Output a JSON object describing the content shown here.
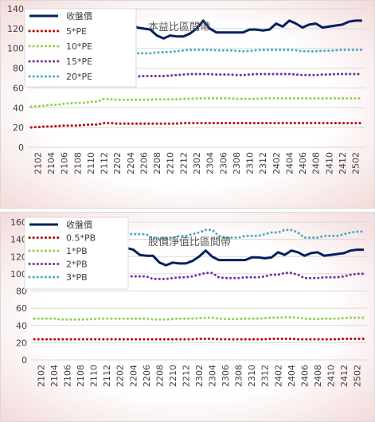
{
  "chart_data": [
    {
      "type": "line",
      "title": "本益比區間帶",
      "x": [
        "2101",
        "2102",
        "2103",
        "2104",
        "2105",
        "2106",
        "2107",
        "2108",
        "2109",
        "2110",
        "2111",
        "2112",
        "2201",
        "2202",
        "2203",
        "2204",
        "2205",
        "2206",
        "2207",
        "2208",
        "2209",
        "2210",
        "2211",
        "2212",
        "2301",
        "2302",
        "2303",
        "2304",
        "2305",
        "2306",
        "2307",
        "2308",
        "2309",
        "2310",
        "2311",
        "2312",
        "2401",
        "2402",
        "2403",
        "2404",
        "2405",
        "2406",
        "2407",
        "2408",
        "2409",
        "2410",
        "2411",
        "2412",
        "2501",
        "2502",
        "2503"
      ],
      "x_tick_labels": [
        "2102",
        "2104",
        "2106",
        "2108",
        "2110",
        "2112",
        "2202",
        "2204",
        "2206",
        "2208",
        "2210",
        "2212",
        "2302",
        "2304",
        "2306",
        "2308",
        "2310",
        "2312",
        "2402",
        "2404",
        "2406",
        "2408",
        "2410",
        "2412",
        "2502"
      ],
      "ylim": [
        0,
        140
      ],
      "y_ticks": [
        0,
        20,
        40,
        60,
        80,
        100,
        120,
        140
      ],
      "grid": true,
      "legend": "top-left",
      "series": [
        {
          "name": "收盤價",
          "color": "#002060",
          "style": "solid",
          "values": [
            125,
            126,
            127,
            128,
            126,
            124,
            125,
            126,
            124,
            122,
            121,
            115,
            122,
            125,
            130,
            126,
            121,
            120,
            119,
            113,
            110,
            113,
            112,
            112,
            115,
            120,
            128,
            120,
            116,
            116,
            116,
            116,
            116,
            119,
            119,
            118,
            119,
            125,
            122,
            128,
            125,
            121,
            124,
            125,
            121,
            122,
            123,
            124,
            127,
            128,
            128
          ]
        },
        {
          "name": "5*PE",
          "color": "#c00000",
          "style": "dotted",
          "values": [
            20,
            20.5,
            21,
            21,
            21.5,
            22,
            22,
            22,
            22.5,
            23,
            23,
            24.5,
            24.5,
            24,
            24,
            24,
            24,
            24,
            24,
            24,
            24,
            24,
            24,
            24.5,
            24.5,
            24.5,
            24.5,
            24.5,
            24.5,
            24.5,
            24.5,
            24.5,
            24.5,
            24.5,
            24.5,
            24.5,
            24.5,
            24.5,
            24.5,
            24.5,
            24.5,
            24.5,
            24.5,
            24.5,
            24.5,
            24.5,
            24.5,
            24.5,
            24.5,
            24.5,
            24.5
          ]
        },
        {
          "name": "10*PE",
          "color": "#92d050",
          "style": "dotted",
          "values": [
            41,
            41.5,
            42,
            43,
            43,
            44,
            44.5,
            45,
            45,
            46,
            46,
            49,
            48.5,
            48,
            48,
            48,
            48,
            48,
            48,
            48.5,
            48.5,
            48.5,
            48.5,
            49,
            49,
            49.5,
            49.5,
            49.5,
            49.5,
            49.5,
            49.5,
            49,
            49,
            49,
            49,
            49.5,
            49.5,
            49.5,
            49.5,
            49.5,
            49.5,
            49.5,
            49.5,
            49.5,
            49.5,
            49.5,
            49.5,
            49.5,
            49.5,
            49.5,
            49.5
          ]
        },
        {
          "name": "15*PE",
          "color": "#7030a0",
          "style": "dotted",
          "values": [
            62,
            63,
            63.5,
            64,
            65,
            66,
            66.5,
            67,
            67.5,
            69,
            69,
            73,
            72,
            72,
            71.5,
            71.5,
            71.5,
            72,
            72,
            72,
            72,
            72.5,
            73,
            73.5,
            74,
            74,
            74,
            74,
            73.5,
            73.5,
            73.5,
            73,
            73,
            73.5,
            74,
            74,
            74,
            74,
            74,
            74,
            73.5,
            73,
            73,
            73,
            73.5,
            73.5,
            74,
            74,
            74,
            74,
            74
          ]
        },
        {
          "name": "20*PE",
          "color": "#4bacc6",
          "style": "dotted",
          "values": [
            82,
            83,
            84,
            85,
            86,
            88,
            89,
            90,
            91,
            92,
            92,
            97,
            96,
            96,
            95,
            95,
            95,
            95,
            95,
            96,
            96,
            96.5,
            97,
            98,
            98.5,
            98.5,
            98.5,
            98.5,
            98,
            98,
            98,
            97.5,
            97,
            97.5,
            98,
            98.5,
            98.5,
            98.5,
            98.5,
            98.5,
            98,
            97,
            97,
            97,
            97.5,
            97.5,
            98,
            98.5,
            98.5,
            98.5,
            98.5
          ]
        }
      ]
    },
    {
      "type": "line",
      "title": "股價淨值比區間帶",
      "x": [
        "2101",
        "2102",
        "2103",
        "2104",
        "2105",
        "2106",
        "2107",
        "2108",
        "2109",
        "2110",
        "2111",
        "2112",
        "2201",
        "2202",
        "2203",
        "2204",
        "2205",
        "2206",
        "2207",
        "2208",
        "2209",
        "2210",
        "2211",
        "2212",
        "2301",
        "2302",
        "2303",
        "2304",
        "2305",
        "2306",
        "2307",
        "2308",
        "2309",
        "2310",
        "2311",
        "2312",
        "2401",
        "2402",
        "2403",
        "2404",
        "2405",
        "2406",
        "2407",
        "2408",
        "2409",
        "2410",
        "2411",
        "2412",
        "2501",
        "2502",
        "2503"
      ],
      "x_tick_labels": [
        "2102",
        "2104",
        "2106",
        "2108",
        "2110",
        "2112",
        "2202",
        "2204",
        "2206",
        "2208",
        "2210",
        "2212",
        "2302",
        "2304",
        "2306",
        "2308",
        "2310",
        "2312",
        "2402",
        "2404",
        "2406",
        "2408",
        "2410",
        "2412",
        "2502"
      ],
      "ylim": [
        0,
        160
      ],
      "y_ticks": [
        0,
        20,
        40,
        60,
        80,
        100,
        120,
        140,
        160
      ],
      "grid": true,
      "legend": "top-left",
      "series": [
        {
          "name": "收盤價",
          "color": "#002060",
          "style": "solid",
          "values": [
            120,
            121,
            122,
            123,
            122,
            121,
            122,
            123,
            124,
            125,
            126,
            123,
            126,
            131,
            130,
            128,
            122,
            121,
            121,
            113,
            110,
            113,
            112,
            112,
            115,
            120,
            127,
            120,
            116,
            116,
            116,
            116,
            116,
            119,
            119,
            118,
            119,
            125,
            122,
            127,
            125,
            121,
            124,
            125,
            121,
            122,
            123,
            124,
            127,
            128,
            128
          ]
        },
        {
          "name": "0.5*PB",
          "color": "#c00000",
          "style": "dotted",
          "values": [
            24,
            24,
            24,
            24,
            24,
            24,
            24,
            24,
            24,
            24,
            24,
            24,
            24,
            24,
            24,
            24,
            24,
            24,
            24,
            24,
            24,
            24,
            24,
            24,
            24,
            24.5,
            24.5,
            24.5,
            24,
            24,
            24,
            24,
            24,
            24,
            24,
            24,
            24.5,
            24.5,
            24.5,
            24.5,
            24,
            24,
            24,
            24,
            24,
            24,
            24,
            24.5,
            24.5,
            24.5,
            24.5
          ]
        },
        {
          "name": "1*PB",
          "color": "#92d050",
          "style": "dotted",
          "values": [
            48,
            48,
            48,
            48,
            47,
            47,
            47,
            47,
            47,
            47.5,
            48,
            48,
            48,
            48,
            48,
            48,
            48,
            48,
            47,
            47,
            47,
            47.5,
            48,
            48,
            48,
            48.5,
            49,
            49,
            48,
            47.5,
            47.5,
            47.5,
            48,
            48,
            48,
            48.5,
            49,
            49,
            49.5,
            49.5,
            49,
            48,
            47.5,
            47.5,
            48,
            48,
            48,
            48.5,
            49,
            49,
            49
          ]
        },
        {
          "name": "2*PB",
          "color": "#7030a0",
          "style": "dotted",
          "values": [
            96,
            96,
            95,
            95,
            94,
            94,
            94,
            94,
            94,
            95,
            96,
            96,
            96,
            97,
            97,
            97,
            97,
            97,
            94,
            94,
            94,
            95,
            96,
            96,
            97,
            99,
            101,
            101,
            96,
            95,
            95,
            95,
            96,
            96,
            96,
            97,
            99,
            99,
            101,
            101,
            99,
            95,
            95,
            95,
            96,
            96,
            96,
            97,
            99,
            100,
            100
          ]
        },
        {
          "name": "3*PB",
          "color": "#4bacc6",
          "style": "dotted",
          "values": [
            144,
            143,
            142,
            142,
            141,
            141,
            141,
            141,
            141,
            142,
            144,
            144,
            144,
            146,
            146,
            146,
            146,
            146,
            141,
            141,
            141,
            142,
            144,
            144,
            146,
            148,
            151,
            151,
            144,
            142,
            142,
            142,
            144,
            144,
            144,
            146,
            148,
            148,
            151,
            151,
            148,
            142,
            142,
            142,
            144,
            144,
            144,
            146,
            148,
            149,
            149
          ]
        }
      ]
    }
  ]
}
